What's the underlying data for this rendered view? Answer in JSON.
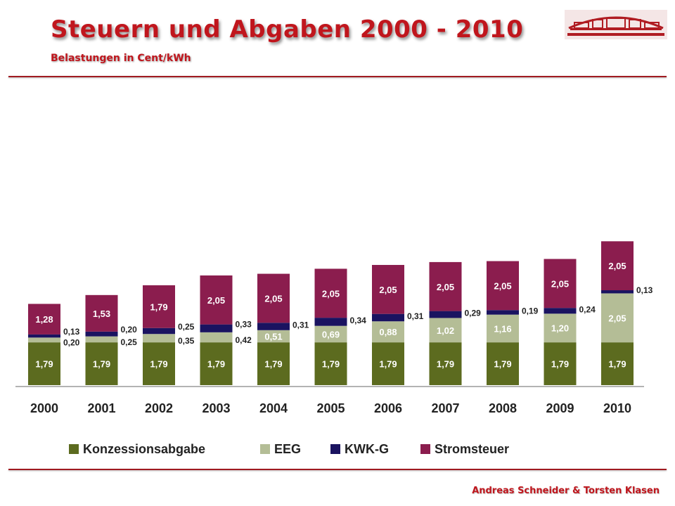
{
  "header": {
    "title": "Steuern und Abgaben 2000 - 2010",
    "subtitle": "Belastungen in Cent/kWh"
  },
  "footer": {
    "author": "Andreas Schneider & Torsten Klasen"
  },
  "colors": {
    "konzession": "#5c6b1f",
    "eeg": "#b4bd96",
    "kwk": "#1a1360",
    "strom": "#8b1d4e",
    "accent": "#c0161d"
  },
  "chart_data": {
    "type": "bar",
    "stacked": true,
    "categories": [
      "2000",
      "2001",
      "2002",
      "2003",
      "2004",
      "2005",
      "2006",
      "2007",
      "2008",
      "2009",
      "2010"
    ],
    "series": [
      {
        "name": "Konzessionsabgabe",
        "values": [
          1.79,
          1.79,
          1.79,
          1.79,
          1.79,
          1.79,
          1.79,
          1.79,
          1.79,
          1.79,
          1.79
        ],
        "labels": [
          "1,79",
          "1,79",
          "1,79",
          "1,79",
          "1,79",
          "1,79",
          "1,79",
          "1,79",
          "1,79",
          "1,79",
          "1,79"
        ]
      },
      {
        "name": "EEG",
        "values": [
          0.2,
          0.25,
          0.35,
          0.42,
          0.51,
          0.69,
          0.88,
          1.02,
          1.16,
          1.2,
          2.05
        ],
        "labels": [
          "0,20",
          "0,25",
          "0,35",
          "0,42",
          "0,51",
          "0,69",
          "0,88",
          "1,02",
          "1,16",
          "1,20",
          "2,05"
        ]
      },
      {
        "name": "KWK-G",
        "values": [
          0.13,
          0.2,
          0.25,
          0.33,
          0.31,
          0.34,
          0.31,
          0.29,
          0.19,
          0.24,
          0.13
        ],
        "labels": [
          "0,13",
          "0,20",
          "0,25",
          "0,33",
          "0,31",
          "0,34",
          "0,31",
          "0,29",
          "0,19",
          "0,24",
          "0,13"
        ]
      },
      {
        "name": "Stromsteuer",
        "values": [
          1.28,
          1.53,
          1.79,
          2.05,
          2.05,
          2.05,
          2.05,
          2.05,
          2.05,
          2.05,
          2.05
        ],
        "labels": [
          "1,28",
          "1,53",
          "1,79",
          "2,05",
          "2,05",
          "2,05",
          "2,05",
          "2,05",
          "2,05",
          "2,05",
          "2,05"
        ]
      }
    ],
    "legend_position": "bottom",
    "grid": false
  }
}
